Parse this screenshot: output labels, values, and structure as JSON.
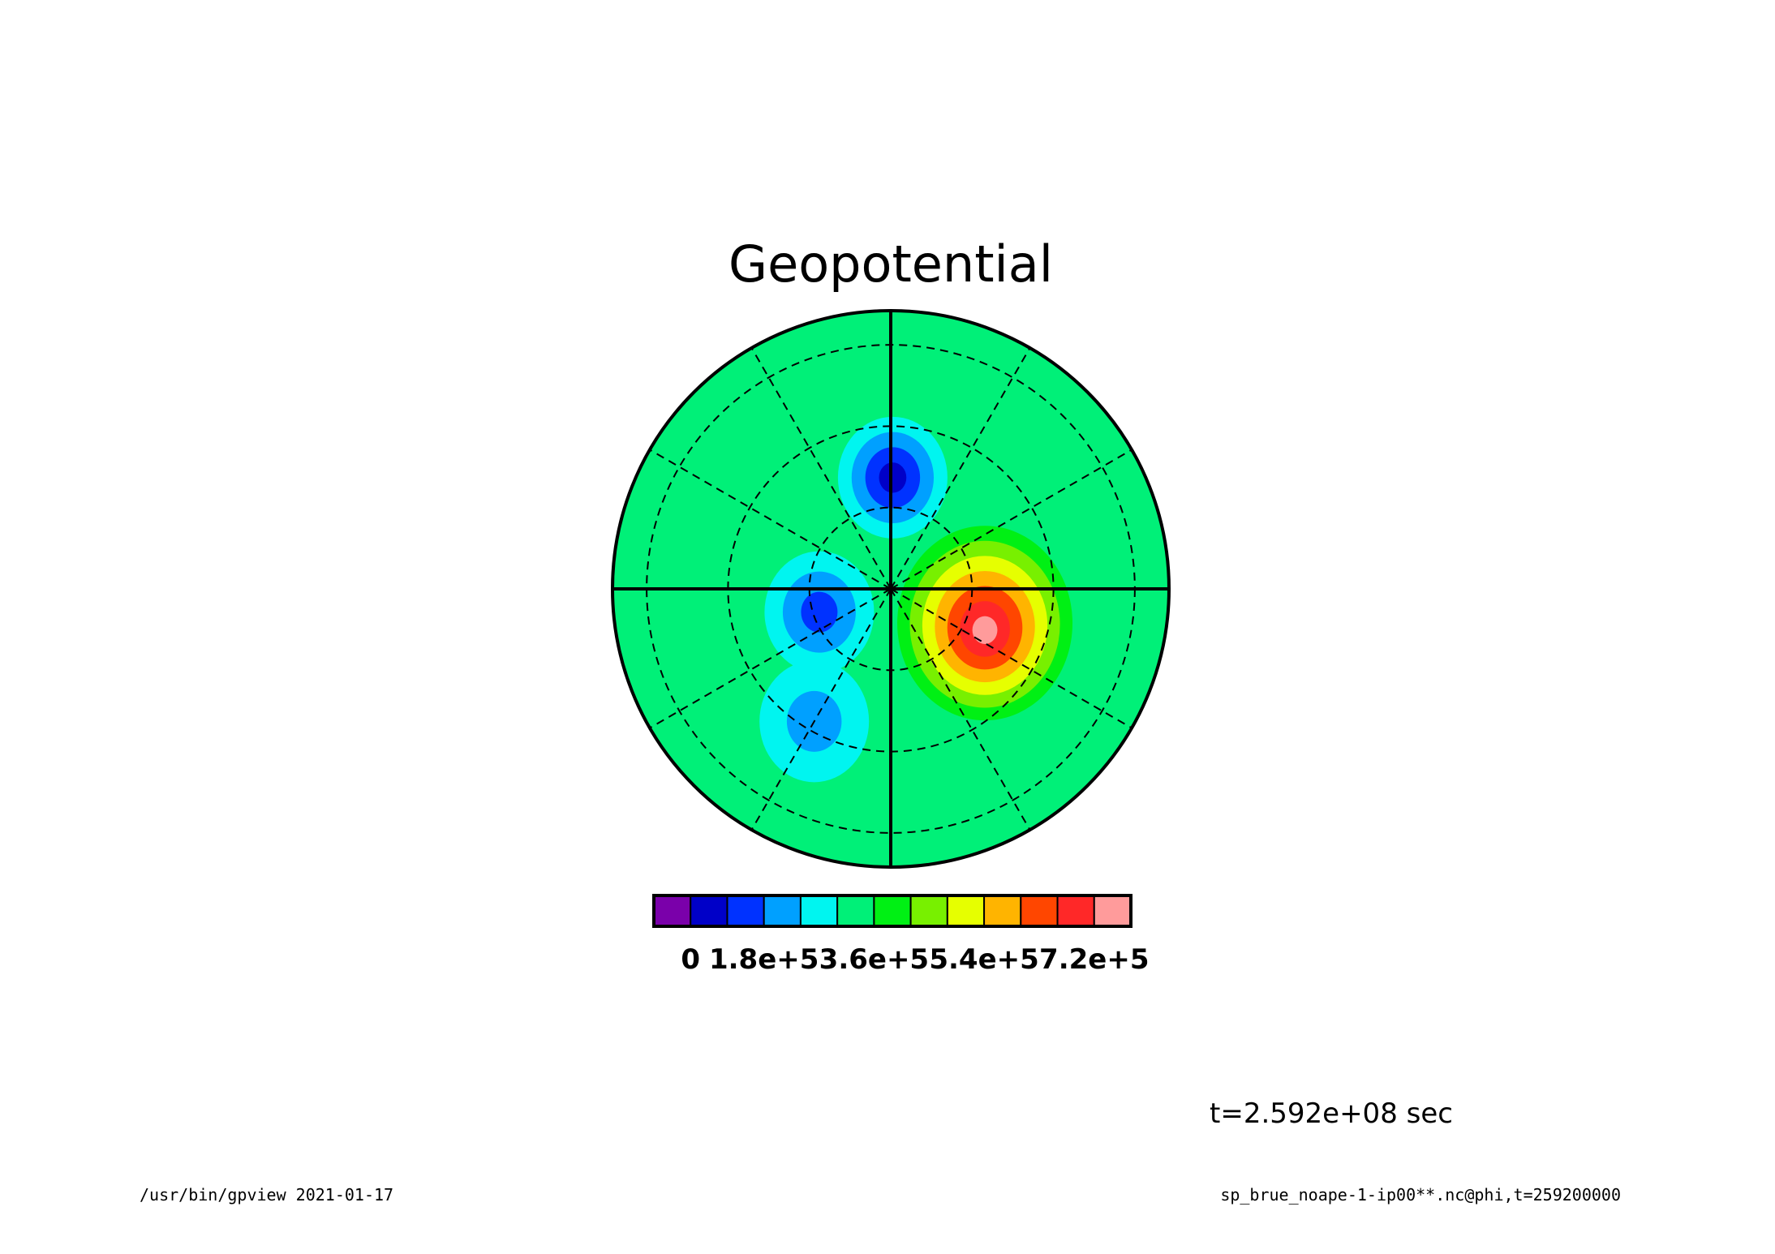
{
  "chart_data": {
    "type": "heatmap",
    "projection": "polar-stereographic",
    "title": "Geopotential",
    "colorbar": {
      "colors": [
        "#7a00aa",
        "#0000c8",
        "#0032ff",
        "#00a0ff",
        "#00f5f0",
        "#00f078",
        "#00f014",
        "#78f000",
        "#e6ff00",
        "#ffb400",
        "#ff4600",
        "#ff2828",
        "#ff9b9b"
      ],
      "levels": [
        0,
        60000,
        120000,
        180000,
        240000,
        300000,
        360000,
        420000,
        480000,
        540000,
        600000,
        660000,
        720000,
        780000
      ],
      "tick_labels": [
        "0",
        "1.8e+5",
        "3.6e+5",
        "5.4e+5",
        "7.2e+5"
      ]
    },
    "background_level": 300000,
    "features": [
      {
        "kind": "high",
        "r": 0.36,
        "theta_deg": -20,
        "peak": 780000
      },
      {
        "kind": "low",
        "r": 0.4,
        "theta_deg": 89,
        "peak": 90000
      },
      {
        "kind": "low",
        "r": 0.27,
        "theta_deg": 198,
        "peak": 120000
      },
      {
        "kind": "low",
        "r": 0.55,
        "theta_deg": 240,
        "peak": 180000
      }
    ],
    "gridlines": {
      "meridians_every_deg": 30,
      "latitude_circles": 3,
      "style": "dashed"
    },
    "grid": true,
    "legend": "bottom"
  },
  "annotations": {
    "time_label": "t=2.592e+08 sec",
    "footer_left": "/usr/bin/gpview  2021-01-17",
    "footer_right": "sp_brue_noape-1-ip00**.nc@phi,t=259200000"
  }
}
